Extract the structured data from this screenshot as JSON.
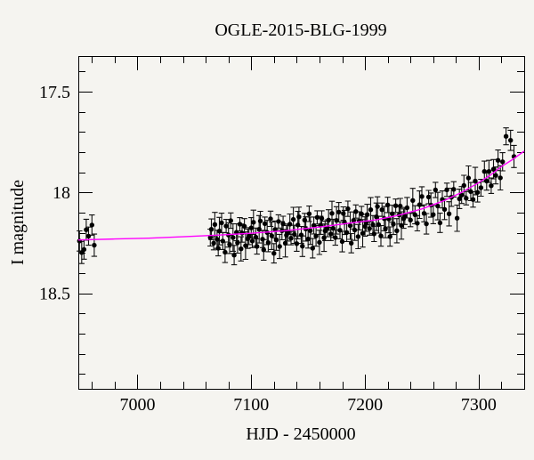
{
  "chart_data": {
    "type": "scatter",
    "title": "OGLE-2015-BLG-1999",
    "xlabel": "HJD - 2450000",
    "ylabel": "I magnitude",
    "xlim": [
      6948,
      7340
    ],
    "y_top_mag": 17.324,
    "y_bottom_mag": 18.974,
    "x_major_ticks": [
      7000,
      7100,
      7200,
      7300
    ],
    "x_minor_step": 20,
    "y_major_ticks": [
      17.5,
      18.0,
      18.5
    ],
    "y_tick_labels": [
      "17.5",
      "18",
      "18.5"
    ],
    "y_minor_step": 0.1,
    "grid": false,
    "legend": null,
    "axis_color": "#000000",
    "point_color": "#000000",
    "error_bar_color": "#111111",
    "model_color": "#ff00ff",
    "background_color": "#f5f4f0",
    "model_curve": [
      [
        6948,
        18.236
      ],
      [
        6980,
        18.231
      ],
      [
        7010,
        18.227
      ],
      [
        7040,
        18.22
      ],
      [
        7070,
        18.212
      ],
      [
        7100,
        18.203
      ],
      [
        7130,
        18.19
      ],
      [
        7160,
        18.172
      ],
      [
        7190,
        18.15
      ],
      [
        7210,
        18.136
      ],
      [
        7230,
        18.113
      ],
      [
        7250,
        18.082
      ],
      [
        7270,
        18.04
      ],
      [
        7285,
        18.0
      ],
      [
        7300,
        17.952
      ],
      [
        7310,
        17.915
      ],
      [
        7320,
        17.872
      ],
      [
        7330,
        17.836
      ],
      [
        7340,
        17.795
      ]
    ],
    "points": [
      [
        6949,
        18.241,
        0.05
      ],
      [
        6951,
        18.298,
        0.055
      ],
      [
        6953,
        18.283,
        0.048
      ],
      [
        6955,
        18.185,
        0.052
      ],
      [
        6957,
        18.217,
        0.045
      ],
      [
        6960,
        18.162,
        0.05
      ],
      [
        6962,
        18.262,
        0.055
      ],
      [
        7064,
        18.224,
        0.042
      ],
      [
        7065,
        18.183,
        0.051
      ],
      [
        7067,
        18.252,
        0.033
      ],
      [
        7068,
        18.159,
        0.06
      ],
      [
        7070,
        18.233,
        0.045
      ],
      [
        7071,
        18.277,
        0.038
      ],
      [
        7072,
        18.192,
        0.068
      ],
      [
        7074,
        18.151,
        0.048
      ],
      [
        7075,
        18.241,
        0.042
      ],
      [
        7077,
        18.297,
        0.051
      ],
      [
        7078,
        18.167,
        0.033
      ],
      [
        7080,
        18.211,
        0.06
      ],
      [
        7081,
        18.258,
        0.045
      ],
      [
        7082,
        18.14,
        0.038
      ],
      [
        7084,
        18.224,
        0.068
      ],
      [
        7085,
        18.311,
        0.048
      ],
      [
        7087,
        18.198,
        0.042
      ],
      [
        7088,
        18.25,
        0.051
      ],
      [
        7090,
        18.158,
        0.033
      ],
      [
        7091,
        18.28,
        0.06
      ],
      [
        7092,
        18.202,
        0.045
      ],
      [
        7094,
        18.168,
        0.038
      ],
      [
        7095,
        18.264,
        0.068
      ],
      [
        7097,
        18.23,
        0.048
      ],
      [
        7098,
        18.217,
        0.042
      ],
      [
        7100,
        18.176,
        0.051
      ],
      [
        7101,
        18.241,
        0.033
      ],
      [
        7102,
        18.148,
        0.06
      ],
      [
        7104,
        18.222,
        0.045
      ],
      [
        7105,
        18.268,
        0.038
      ],
      [
        7107,
        18.183,
        0.068
      ],
      [
        7108,
        18.142,
        0.048
      ],
      [
        7110,
        18.232,
        0.042
      ],
      [
        7111,
        18.285,
        0.051
      ],
      [
        7112,
        18.155,
        0.033
      ],
      [
        7114,
        18.199,
        0.06
      ],
      [
        7115,
        18.249,
        0.045
      ],
      [
        7117,
        18.131,
        0.038
      ],
      [
        7118,
        18.215,
        0.068
      ],
      [
        7120,
        18.302,
        0.048
      ],
      [
        7121,
        18.184,
        0.042
      ],
      [
        7122,
        18.236,
        0.051
      ],
      [
        7124,
        18.144,
        0.033
      ],
      [
        7125,
        18.268,
        0.06
      ],
      [
        7127,
        18.19,
        0.045
      ],
      [
        7128,
        18.156,
        0.038
      ],
      [
        7130,
        18.252,
        0.068
      ],
      [
        7131,
        18.212,
        0.048
      ],
      [
        7132,
        18.199,
        0.042
      ],
      [
        7134,
        18.158,
        0.051
      ],
      [
        7135,
        18.227,
        0.033
      ],
      [
        7137,
        18.134,
        0.06
      ],
      [
        7138,
        18.208,
        0.045
      ],
      [
        7140,
        18.254,
        0.038
      ],
      [
        7141,
        18.162,
        0.068
      ],
      [
        7142,
        18.121,
        0.048
      ],
      [
        7144,
        18.211,
        0.042
      ],
      [
        7145,
        18.267,
        0.051
      ],
      [
        7147,
        18.137,
        0.033
      ],
      [
        7148,
        18.181,
        0.06
      ],
      [
        7150,
        18.231,
        0.045
      ],
      [
        7151,
        18.106,
        0.038
      ],
      [
        7152,
        18.19,
        0.068
      ],
      [
        7154,
        18.277,
        0.048
      ],
      [
        7155,
        18.164,
        0.042
      ],
      [
        7157,
        18.216,
        0.051
      ],
      [
        7158,
        18.124,
        0.033
      ],
      [
        7160,
        18.248,
        0.06
      ],
      [
        7161,
        18.163,
        0.045
      ],
      [
        7162,
        18.129,
        0.038
      ],
      [
        7164,
        18.225,
        0.068
      ],
      [
        7165,
        18.191,
        0.048
      ],
      [
        7167,
        18.178,
        0.042
      ],
      [
        7168,
        18.137,
        0.051
      ],
      [
        7170,
        18.206,
        0.033
      ],
      [
        7171,
        18.104,
        0.06
      ],
      [
        7172,
        18.178,
        0.045
      ],
      [
        7174,
        18.224,
        0.038
      ],
      [
        7175,
        18.139,
        0.068
      ],
      [
        7177,
        18.098,
        0.048
      ],
      [
        7178,
        18.188,
        0.042
      ],
      [
        7180,
        18.244,
        0.051
      ],
      [
        7181,
        18.105,
        0.033
      ],
      [
        7182,
        18.149,
        0.06
      ],
      [
        7184,
        18.199,
        0.045
      ],
      [
        7185,
        18.081,
        0.038
      ],
      [
        7187,
        18.165,
        0.068
      ],
      [
        7188,
        18.252,
        0.048
      ],
      [
        7190,
        18.139,
        0.042
      ],
      [
        7191,
        18.187,
        0.051
      ],
      [
        7192,
        18.095,
        0.033
      ],
      [
        7194,
        18.219,
        0.06
      ],
      [
        7195,
        18.141,
        0.045
      ],
      [
        7197,
        18.107,
        0.038
      ],
      [
        7198,
        18.203,
        0.068
      ],
      [
        7200,
        18.169,
        0.048
      ],
      [
        7201,
        18.151,
        0.042
      ],
      [
        7202,
        18.11,
        0.051
      ],
      [
        7204,
        18.179,
        0.033
      ],
      [
        7205,
        18.086,
        0.06
      ],
      [
        7207,
        18.16,
        0.045
      ],
      [
        7208,
        18.206,
        0.038
      ],
      [
        7210,
        18.121,
        0.068
      ],
      [
        7211,
        18.07,
        0.048
      ],
      [
        7212,
        18.16,
        0.042
      ],
      [
        7214,
        18.216,
        0.051
      ],
      [
        7215,
        18.086,
        0.033
      ],
      [
        7217,
        18.13,
        0.06
      ],
      [
        7218,
        18.18,
        0.045
      ],
      [
        7220,
        18.062,
        0.038
      ],
      [
        7221,
        18.132,
        0.068
      ],
      [
        7222,
        18.219,
        0.048
      ],
      [
        7224,
        18.106,
        0.042
      ],
      [
        7225,
        18.158,
        0.051
      ],
      [
        7227,
        18.066,
        0.033
      ],
      [
        7228,
        18.19,
        0.06
      ],
      [
        7230,
        18.112,
        0.045
      ],
      [
        7231,
        18.068,
        0.038
      ],
      [
        7232,
        18.164,
        0.068
      ],
      [
        7234,
        18.13,
        0.048
      ],
      [
        7235,
        18.117,
        0.042
      ],
      [
        7237,
        18.076,
        0.051
      ],
      [
        7240,
        18.137,
        0.033
      ],
      [
        7242,
        18.04,
        0.06
      ],
      [
        7244,
        18.111,
        0.045
      ],
      [
        7246,
        18.153,
        0.038
      ],
      [
        7248,
        18.061,
        0.068
      ],
      [
        7250,
        18.02,
        0.048
      ],
      [
        7252,
        18.104,
        0.042
      ],
      [
        7254,
        18.156,
        0.051
      ],
      [
        7256,
        18.023,
        0.033
      ],
      [
        7258,
        18.063,
        0.06
      ],
      [
        7260,
        18.11,
        0.045
      ],
      [
        7262,
        17.988,
        0.038
      ],
      [
        7264,
        18.068,
        0.068
      ],
      [
        7266,
        18.151,
        0.048
      ],
      [
        7268,
        18.035,
        0.042
      ],
      [
        7270,
        18.084,
        0.051
      ],
      [
        7272,
        17.987,
        0.033
      ],
      [
        7274,
        18.106,
        0.06
      ],
      [
        7276,
        18.024,
        0.045
      ],
      [
        7278,
        17.985,
        0.038
      ],
      [
        7281,
        18.128,
        0.065
      ],
      [
        7283,
        18.032,
        0.048
      ],
      [
        7285,
        18.013,
        0.042
      ],
      [
        7287,
        17.966,
        0.051
      ],
      [
        7289,
        18.029,
        0.033
      ],
      [
        7291,
        17.929,
        0.06
      ],
      [
        7293,
        17.996,
        0.045
      ],
      [
        7295,
        18.035,
        0.038
      ],
      [
        7297,
        17.944,
        0.068
      ],
      [
        7299,
        18.0,
        0.048
      ],
      [
        7302,
        17.977,
        0.042
      ],
      [
        7305,
        17.896,
        0.051
      ],
      [
        7307,
        17.944,
        0.045
      ],
      [
        7309,
        17.896,
        0.055
      ],
      [
        7311,
        17.967,
        0.038
      ],
      [
        7313,
        17.885,
        0.048
      ],
      [
        7315,
        17.916,
        0.042
      ],
      [
        7317,
        17.841,
        0.051
      ],
      [
        7319,
        17.928,
        0.06
      ],
      [
        7321,
        17.848,
        0.045
      ],
      [
        7324,
        17.722,
        0.042
      ],
      [
        7328,
        17.742,
        0.05
      ],
      [
        7331,
        17.822,
        0.055
      ]
    ]
  }
}
